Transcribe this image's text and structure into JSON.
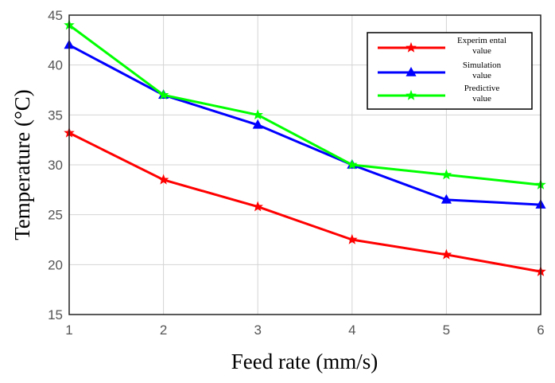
{
  "chart_data": {
    "type": "line",
    "title": "",
    "xlabel": "Feed rate  (mm/s)",
    "ylabel": "Temperature   (°C)",
    "x": [
      1,
      2,
      3,
      4,
      5,
      6
    ],
    "xlim": [
      1,
      6
    ],
    "ylim": [
      15,
      45
    ],
    "x_ticks": [
      "1",
      "2",
      "3",
      "4",
      "5",
      "6"
    ],
    "y_ticks": [
      "15",
      "20",
      "25",
      "30",
      "35",
      "40",
      "45"
    ],
    "grid": true,
    "legend_position": "top-right",
    "series": [
      {
        "name": "Experimental value",
        "legend_lines": [
          "Experim ental",
          "value"
        ],
        "color": "#ff0000",
        "marker": "star",
        "values": [
          33.2,
          28.5,
          25.8,
          22.5,
          21.0,
          19.3
        ]
      },
      {
        "name": "Simulation value",
        "legend_lines": [
          "Simulation",
          "value"
        ],
        "color": "#0000ff",
        "marker": "triangle",
        "values": [
          42.0,
          37.0,
          34.0,
          30.0,
          26.5,
          26.0
        ]
      },
      {
        "name": "Predictive value",
        "legend_lines": [
          "Predictive",
          "value"
        ],
        "color": "#00ff00",
        "marker": "star",
        "values": [
          44.0,
          37.0,
          35.0,
          30.0,
          29.0,
          28.0
        ]
      }
    ]
  }
}
